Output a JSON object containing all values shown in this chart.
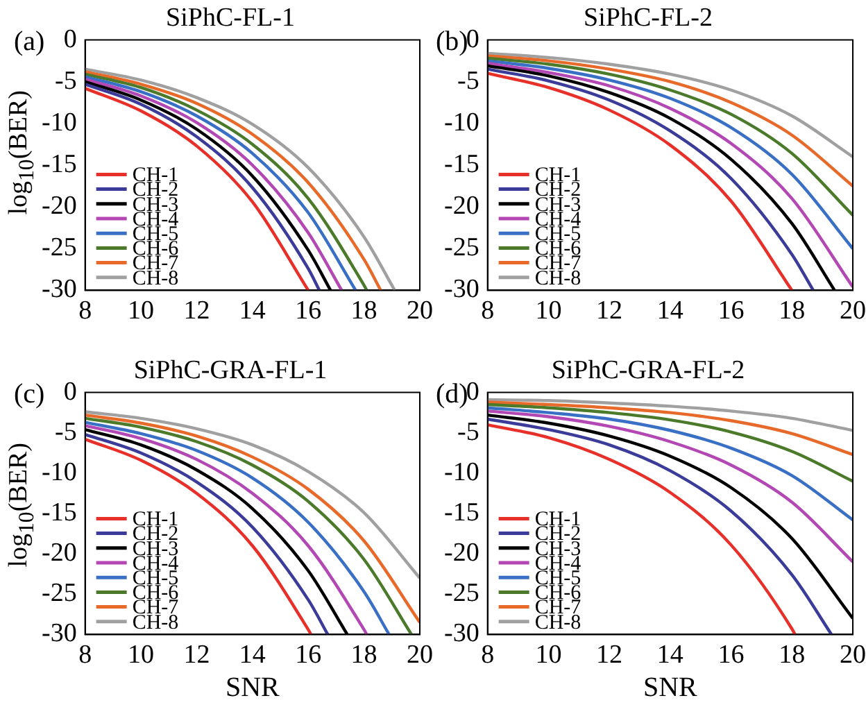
{
  "chart_data": [
    {
      "type": "line",
      "title": "SiPhC-FL-1",
      "ylabel": "log$_{10}$(BER)",
      "annotations": [
        "(a)"
      ],
      "xlim": [
        8,
        20
      ],
      "xticks": [
        8,
        10,
        12,
        14,
        16,
        18,
        20
      ],
      "ylim": [
        -30,
        0
      ],
      "yticks": [
        -30,
        -25,
        -20,
        -15,
        -10,
        -5,
        0
      ],
      "grid": false,
      "legend": "bottom left",
      "series": [
        {
          "name": "CH-1",
          "color": "#e8302a",
          "x": [
            8,
            10,
            12,
            14,
            16
          ],
          "values": [
            -5.8,
            -8.5,
            -12.7,
            -19.4,
            -30
          ]
        },
        {
          "name": "CH-2",
          "color": "#3b3b9a",
          "x": [
            8,
            10,
            12,
            14,
            16,
            16.4
          ],
          "values": [
            -5.3,
            -7.7,
            -11.6,
            -17.7,
            -27.4,
            -30
          ]
        },
        {
          "name": "CH-3",
          "color": "#000000",
          "x": [
            8,
            10,
            12,
            14,
            16,
            16.8
          ],
          "values": [
            -5.0,
            -7.2,
            -10.7,
            -16.3,
            -25.2,
            -30
          ]
        },
        {
          "name": "CH-4",
          "color": "#b347b3",
          "x": [
            8,
            10,
            12,
            14,
            16,
            17.2
          ],
          "values": [
            -4.7,
            -6.7,
            -9.9,
            -15.0,
            -23.1,
            -30
          ]
        },
        {
          "name": "CH-5",
          "color": "#3a6fc6",
          "x": [
            8,
            10,
            12,
            14,
            16,
            17.7
          ],
          "values": [
            -4.4,
            -6.2,
            -9.1,
            -13.6,
            -20.7,
            -30
          ]
        },
        {
          "name": "CH-6",
          "color": "#4a7a2a",
          "x": [
            8,
            10,
            12,
            14,
            16,
            18,
            18.1
          ],
          "values": [
            -4.1,
            -5.7,
            -8.4,
            -12.5,
            -19.0,
            -29.4,
            -30
          ]
        },
        {
          "name": "CH-7",
          "color": "#e86a2a",
          "x": [
            8,
            10,
            12,
            14,
            16,
            18,
            18.6
          ],
          "values": [
            -3.8,
            -5.3,
            -7.6,
            -11.3,
            -17.1,
            -26.3,
            -30
          ]
        },
        {
          "name": "CH-8",
          "color": "#a0a0a0",
          "x": [
            8,
            10,
            12,
            14,
            16,
            18,
            19.1
          ],
          "values": [
            -3.5,
            -4.8,
            -6.9,
            -10.1,
            -15.3,
            -23.6,
            -30
          ]
        }
      ]
    },
    {
      "type": "line",
      "title": "SiPhC-FL-2",
      "annotations": [
        "(b)"
      ],
      "xlim": [
        8,
        20
      ],
      "xticks": [
        8,
        10,
        12,
        14,
        16,
        18,
        20
      ],
      "ylim": [
        -30,
        0
      ],
      "yticks": [
        -30,
        -25,
        -20,
        -15,
        -10,
        -5,
        0
      ],
      "grid": false,
      "legend": "bottom left",
      "series": [
        {
          "name": "CH-1",
          "color": "#e8302a",
          "x": [
            8,
            10,
            12,
            14,
            16,
            18
          ],
          "values": [
            -4.0,
            -5.7,
            -8.4,
            -12.6,
            -19.3,
            -30
          ]
        },
        {
          "name": "CH-2",
          "color": "#3b3b9a",
          "x": [
            8,
            10,
            12,
            14,
            16,
            18,
            18.7
          ],
          "values": [
            -3.5,
            -4.9,
            -7.2,
            -10.9,
            -16.6,
            -25.7,
            -30
          ]
        },
        {
          "name": "CH-3",
          "color": "#000000",
          "x": [
            8,
            10,
            12,
            14,
            16,
            18,
            19.4
          ],
          "values": [
            -3.1,
            -4.3,
            -6.3,
            -9.4,
            -14.3,
            -22.0,
            -30
          ]
        },
        {
          "name": "CH-4",
          "color": "#b347b3",
          "x": [
            8,
            10,
            12,
            14,
            16,
            18,
            20
          ],
          "values": [
            -2.8,
            -3.9,
            -5.5,
            -8.2,
            -12.4,
            -19.0,
            -29.6
          ]
        },
        {
          "name": "CH-5",
          "color": "#3a6fc6",
          "x": [
            8,
            10,
            12,
            14,
            16,
            18,
            20
          ],
          "values": [
            -2.5,
            -3.4,
            -4.8,
            -7.0,
            -10.5,
            -16.1,
            -25.0
          ]
        },
        {
          "name": "CH-6",
          "color": "#4a7a2a",
          "x": [
            8,
            10,
            12,
            14,
            16,
            18,
            20
          ],
          "values": [
            -2.2,
            -2.9,
            -4.1,
            -6.0,
            -8.9,
            -13.6,
            -21.0
          ]
        },
        {
          "name": "CH-7",
          "color": "#e86a2a",
          "x": [
            8,
            10,
            12,
            14,
            16,
            18,
            20
          ],
          "values": [
            -1.9,
            -2.5,
            -3.5,
            -5.0,
            -7.5,
            -11.4,
            -17.5
          ]
        },
        {
          "name": "CH-8",
          "color": "#a0a0a0",
          "x": [
            8,
            10,
            12,
            14,
            16,
            18,
            20
          ],
          "values": [
            -1.6,
            -2.1,
            -2.9,
            -4.1,
            -6.0,
            -9.1,
            -14.0
          ]
        }
      ]
    },
    {
      "type": "line",
      "title": "SiPhC-GRA-FL-1",
      "xlabel": "SNR",
      "ylabel": "log$_{10}$(BER)",
      "annotations": [
        "(c)"
      ],
      "xlim": [
        8,
        20
      ],
      "xticks": [
        8,
        10,
        12,
        14,
        16,
        18,
        20
      ],
      "ylim": [
        -30,
        0
      ],
      "yticks": [
        -30,
        -25,
        -20,
        -15,
        -10,
        -5,
        0
      ],
      "grid": false,
      "legend": "bottom left",
      "series": [
        {
          "name": "CH-1",
          "color": "#e8302a",
          "x": [
            8,
            10,
            12,
            14,
            16,
            16.1
          ],
          "values": [
            -5.8,
            -8.4,
            -12.5,
            -19.0,
            -29.4,
            -30
          ]
        },
        {
          "name": "CH-2",
          "color": "#3b3b9a",
          "x": [
            8,
            10,
            12,
            14,
            16,
            16.7
          ],
          "values": [
            -5.2,
            -7.5,
            -11.1,
            -16.7,
            -25.7,
            -30
          ]
        },
        {
          "name": "CH-3",
          "color": "#000000",
          "x": [
            8,
            10,
            12,
            14,
            16,
            17.4
          ],
          "values": [
            -4.6,
            -6.5,
            -9.6,
            -14.4,
            -22.1,
            -30
          ]
        },
        {
          "name": "CH-4",
          "color": "#b347b3",
          "x": [
            8,
            10,
            12,
            14,
            16,
            18,
            18.1
          ],
          "values": [
            -4.1,
            -5.7,
            -8.3,
            -12.5,
            -19.0,
            -29.4,
            -30
          ]
        },
        {
          "name": "CH-5",
          "color": "#3a6fc6",
          "x": [
            8,
            10,
            12,
            14,
            16,
            18,
            18.9
          ],
          "values": [
            -3.7,
            -5.1,
            -7.2,
            -10.6,
            -16.1,
            -24.7,
            -30
          ]
        },
        {
          "name": "CH-6",
          "color": "#4a7a2a",
          "x": [
            8,
            10,
            12,
            14,
            16,
            18,
            19.7
          ],
          "values": [
            -3.2,
            -4.3,
            -6.1,
            -9.0,
            -13.5,
            -20.7,
            -30
          ]
        },
        {
          "name": "CH-7",
          "color": "#e86a2a",
          "x": [
            8,
            10,
            12,
            14,
            16,
            18,
            20
          ],
          "values": [
            -2.8,
            -3.8,
            -5.4,
            -8.0,
            -12.0,
            -18.4,
            -28.5
          ]
        },
        {
          "name": "CH-8",
          "color": "#a0a0a0",
          "x": [
            8,
            10,
            12,
            14,
            16,
            18,
            20
          ],
          "values": [
            -2.4,
            -3.2,
            -4.5,
            -6.5,
            -9.8,
            -14.9,
            -23.0
          ]
        }
      ]
    },
    {
      "type": "line",
      "title": "SiPhC-GRA-FL-2",
      "xlabel": "SNR",
      "annotations": [
        "(d)"
      ],
      "xlim": [
        8,
        20
      ],
      "xticks": [
        8,
        10,
        12,
        14,
        16,
        18,
        20
      ],
      "ylim": [
        -30,
        0
      ],
      "yticks": [
        -30,
        -25,
        -20,
        -15,
        -10,
        -5,
        0
      ],
      "grid": false,
      "legend": "bottom left",
      "series": [
        {
          "name": "CH-1",
          "color": "#e8302a",
          "x": [
            8,
            10,
            12,
            14,
            16,
            18,
            18.1
          ],
          "values": [
            -4.0,
            -5.6,
            -8.3,
            -12.4,
            -18.9,
            -29.3,
            -30
          ]
        },
        {
          "name": "CH-2",
          "color": "#3b3b9a",
          "x": [
            8,
            10,
            12,
            14,
            16,
            18,
            19.3
          ],
          "values": [
            -3.3,
            -4.6,
            -6.5,
            -9.7,
            -14.7,
            -22.6,
            -30
          ]
        },
        {
          "name": "CH-3",
          "color": "#000000",
          "x": [
            8,
            10,
            12,
            14,
            16,
            18,
            20
          ],
          "values": [
            -2.8,
            -3.8,
            -5.4,
            -7.9,
            -11.8,
            -18.1,
            -28.0
          ]
        },
        {
          "name": "CH-4",
          "color": "#b347b3",
          "x": [
            8,
            10,
            12,
            14,
            16,
            18,
            20
          ],
          "values": [
            -2.3,
            -3.0,
            -4.2,
            -6.1,
            -9.0,
            -13.6,
            -21.0
          ]
        },
        {
          "name": "CH-5",
          "color": "#3a6fc6",
          "x": [
            8,
            10,
            12,
            14,
            16,
            18,
            20
          ],
          "values": [
            -1.9,
            -2.5,
            -3.3,
            -4.7,
            -6.9,
            -10.3,
            -15.8
          ]
        },
        {
          "name": "CH-6",
          "color": "#4a7a2a",
          "x": [
            8,
            10,
            12,
            14,
            16,
            18,
            20
          ],
          "values": [
            -1.5,
            -1.9,
            -2.5,
            -3.4,
            -4.9,
            -7.3,
            -11.0
          ]
        },
        {
          "name": "CH-7",
          "color": "#e86a2a",
          "x": [
            8,
            10,
            12,
            14,
            16,
            18,
            20
          ],
          "values": [
            -1.2,
            -1.5,
            -1.9,
            -2.5,
            -3.5,
            -5.1,
            -7.7
          ]
        },
        {
          "name": "CH-8",
          "color": "#a0a0a0",
          "x": [
            8,
            10,
            12,
            14,
            16,
            18,
            20
          ],
          "values": [
            -0.9,
            -1.0,
            -1.3,
            -1.7,
            -2.3,
            -3.2,
            -4.7
          ]
        }
      ]
    }
  ]
}
